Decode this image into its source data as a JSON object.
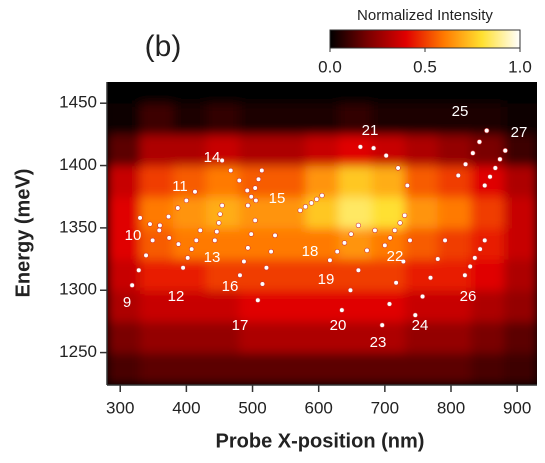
{
  "chart_data": {
    "type": "heatmap",
    "panel_label": "(b)",
    "x_label": "Probe X-position (nm)",
    "y_label": "Energy (meV)",
    "xlim": [
      280,
      930
    ],
    "ylim": [
      1224,
      1467
    ],
    "xticks": [
      300,
      400,
      500,
      600,
      700,
      800,
      900
    ],
    "yticks": [
      1250,
      1300,
      1350,
      1400,
      1450
    ],
    "colorbar": {
      "title": "Normalized Intensity",
      "lim": [
        0,
        1
      ],
      "ticks": [
        {
          "value": 0,
          "label": "0.0"
        },
        0.5,
        {
          "value": 1,
          "label": "1.0"
        }
      ]
    },
    "colormap": [
      "#000000",
      "#7a0000",
      "#e00000",
      "#ff7a00",
      "#ffe030",
      "#ffffff"
    ],
    "x_edges": [
      280,
      330,
      380,
      430,
      480,
      530,
      580,
      630,
      680,
      730,
      780,
      830,
      880,
      930
    ],
    "y_edges": [
      1225,
      1250,
      1275,
      1300,
      1325,
      1350,
      1375,
      1400,
      1425,
      1450,
      1475
    ],
    "z": [
      [
        0.12,
        0.15,
        0.15,
        0.15,
        0.15,
        0.15,
        0.15,
        0.15,
        0.15,
        0.15,
        0.15,
        0.12,
        0.1
      ],
      [
        0.2,
        0.25,
        0.25,
        0.25,
        0.3,
        0.3,
        0.3,
        0.3,
        0.3,
        0.25,
        0.25,
        0.2,
        0.15
      ],
      [
        0.3,
        0.35,
        0.35,
        0.35,
        0.4,
        0.4,
        0.4,
        0.4,
        0.4,
        0.35,
        0.35,
        0.3,
        0.25
      ],
      [
        0.35,
        0.45,
        0.45,
        0.5,
        0.5,
        0.5,
        0.5,
        0.5,
        0.5,
        0.45,
        0.45,
        0.4,
        0.3
      ],
      [
        0.4,
        0.55,
        0.6,
        0.6,
        0.6,
        0.6,
        0.6,
        0.65,
        0.6,
        0.55,
        0.5,
        0.45,
        0.35
      ],
      [
        0.4,
        0.6,
        0.65,
        0.7,
        0.65,
        0.65,
        0.75,
        0.85,
        0.8,
        0.65,
        0.6,
        0.5,
        0.35
      ],
      [
        0.35,
        0.5,
        0.55,
        0.6,
        0.55,
        0.55,
        0.65,
        0.75,
        0.7,
        0.55,
        0.5,
        0.4,
        0.3
      ],
      [
        0.15,
        0.3,
        0.3,
        0.35,
        0.3,
        0.3,
        0.35,
        0.4,
        0.35,
        0.3,
        0.25,
        0.2,
        0.1
      ],
      [
        0.02,
        0.1,
        0.05,
        0.08,
        0.05,
        0.05,
        0.05,
        0.08,
        0.05,
        0.05,
        0.05,
        0.05,
        0.02
      ],
      [
        0,
        0,
        0,
        0,
        0,
        0,
        0,
        0,
        0,
        0,
        0,
        0,
        0
      ]
    ],
    "series": [
      {
        "name": "9",
        "x": [
          318,
          328,
          339,
          349,
          360
        ],
        "y": [
          1304,
          1316,
          1328,
          1340,
          1352
        ]
      },
      {
        "name": "10",
        "x": [
          330,
          345,
          359,
          374,
          388
        ],
        "y": [
          1358,
          1353,
          1348,
          1342,
          1337
        ]
      },
      {
        "name": "11",
        "x": [
          360,
          373,
          387,
          400,
          413
        ],
        "y": [
          1352,
          1359,
          1366,
          1372,
          1379
        ]
      },
      {
        "name": "12",
        "x": [
          395,
          402,
          408,
          415,
          421
        ],
        "y": [
          1318,
          1326,
          1333,
          1340,
          1348
        ]
      },
      {
        "name": "13",
        "x": [
          443,
          446,
          449,
          451,
          454
        ],
        "y": [
          1340,
          1347,
          1354,
          1361,
          1368
        ]
      },
      {
        "name": "14",
        "x": [
          454,
          467,
          480,
          492,
          505
        ],
        "y": [
          1404,
          1396,
          1388,
          1380,
          1372
        ]
      },
      {
        "name": "15",
        "x": [
          493,
          498,
          504,
          509,
          514
        ],
        "y": [
          1368,
          1375,
          1382,
          1389,
          1396
        ]
      },
      {
        "name": "16",
        "x": [
          481,
          487,
          493,
          498,
          504
        ],
        "y": [
          1312,
          1323,
          1334,
          1345,
          1356
        ]
      },
      {
        "name": "17",
        "x": [
          508,
          515,
          521,
          528,
          534
        ],
        "y": [
          1292,
          1305,
          1318,
          1331,
          1344
        ]
      },
      {
        "name": "18",
        "x": [
          572,
          580,
          589,
          597,
          605
        ],
        "y": [
          1364,
          1367,
          1370,
          1373,
          1376
        ]
      },
      {
        "name": "19",
        "x": [
          617,
          628,
          639,
          649,
          660
        ],
        "y": [
          1324,
          1331,
          1338,
          1345,
          1352
        ]
      },
      {
        "name": "20",
        "x": [
          635,
          648,
          660,
          673,
          685
        ],
        "y": [
          1284,
          1300,
          1316,
          1332,
          1348
        ]
      },
      {
        "name": "21",
        "x": [
          663,
          683,
          702,
          720,
          734
        ],
        "y": [
          1415,
          1414,
          1408,
          1398,
          1384
        ]
      },
      {
        "name": "22",
        "x": [
          700,
          708,
          715,
          723,
          730
        ],
        "y": [
          1336,
          1342,
          1348,
          1354,
          1360
        ]
      },
      {
        "name": "23",
        "x": [
          696,
          707,
          717,
          728,
          738
        ],
        "y": [
          1272,
          1289,
          1306,
          1323,
          1340
        ]
      },
      {
        "name": "24",
        "x": [
          746,
          757,
          769,
          780,
          791
        ],
        "y": [
          1280,
          1295,
          1310,
          1325,
          1340
        ]
      },
      {
        "name": "25",
        "x": [
          811,
          822,
          833,
          843,
          854
        ],
        "y": [
          1392,
          1401,
          1410,
          1419,
          1428
        ]
      },
      {
        "name": "26",
        "x": [
          821,
          829,
          836,
          844,
          851
        ],
        "y": [
          1312,
          1319,
          1326,
          1333,
          1340
        ]
      },
      {
        "name": "27",
        "x": [
          851,
          859,
          867,
          874,
          882
        ],
        "y": [
          1384,
          1391,
          1398,
          1405,
          1412
        ]
      }
    ]
  }
}
